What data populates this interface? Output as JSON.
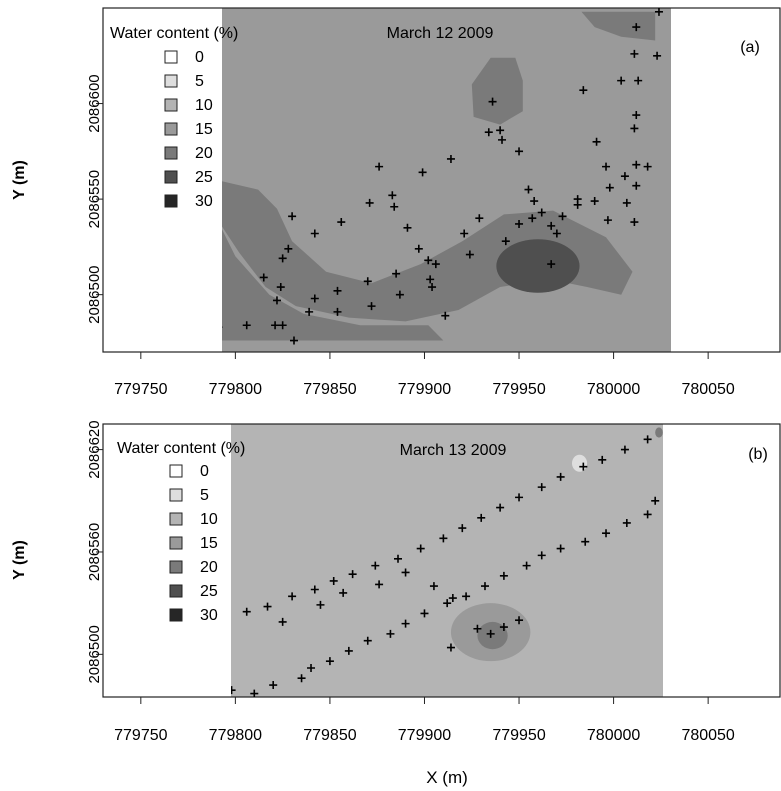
{
  "chart_data": [
    {
      "type": "heatmap",
      "panel_label": "(a)",
      "date_label": "March 12 2009",
      "legend_title": "Water content (%)",
      "ylabel": "Y (m)",
      "x_ticks": [
        "779750",
        "779800",
        "779850",
        "779900",
        "779950",
        "780000",
        "780050"
      ],
      "y_ticks": [
        "2086500",
        "2086550",
        "2086600"
      ],
      "xlim": [
        779730,
        780088
      ],
      "ylim": [
        2086470,
        2086650
      ],
      "legend": [
        {
          "label": "0",
          "color": "#ffffff"
        },
        {
          "label": "5",
          "color": "#dedede"
        },
        {
          "label": "10",
          "color": "#b4b4b4"
        },
        {
          "label": "15",
          "color": "#9a9a9a"
        },
        {
          "label": "20",
          "color": "#7a7a7a"
        },
        {
          "label": "25",
          "color": "#4f4f4f"
        },
        {
          "label": "30",
          "color": "#262626"
        }
      ],
      "field": {
        "base_class": "15",
        "regions": [
          {
            "class": "20",
            "shape": "polygon",
            "points": [
              [
                779790,
                2086540
              ],
              [
                779802,
                2086522
              ],
              [
                779816,
                2086504
              ],
              [
                779832,
                2086494
              ],
              [
                779860,
                2086488
              ],
              [
                779890,
                2086486
              ],
              [
                779918,
                2086492
              ],
              [
                779940,
                2086504
              ],
              [
                779966,
                2086508
              ],
              [
                779986,
                2086504
              ],
              [
                780004,
                2086500
              ],
              [
                780010,
                2086512
              ],
              [
                779996,
                2086530
              ],
              [
                779968,
                2086544
              ],
              [
                779942,
                2086542
              ],
              [
                779920,
                2086528
              ],
              [
                779898,
                2086516
              ],
              [
                779872,
                2086506
              ],
              [
                779848,
                2086512
              ],
              [
                779830,
                2086528
              ],
              [
                779822,
                2086545
              ],
              [
                779812,
                2086555
              ],
              [
                779790,
                2086560
              ]
            ]
          },
          {
            "class": "20",
            "shape": "polygon",
            "points": [
              [
                779790,
                2086476
              ],
              [
                779790,
                2086540
              ],
              [
                779800,
                2086520
              ],
              [
                779818,
                2086500
              ],
              [
                779836,
                2086490
              ],
              [
                779866,
                2086484
              ],
              [
                779902,
                2086484
              ],
              [
                779910,
                2086476
              ]
            ]
          },
          {
            "class": "20",
            "shape": "polygon",
            "points": [
              [
                779935,
                2086624
              ],
              [
                779948,
                2086624
              ],
              [
                779952,
                2086612
              ],
              [
                779952,
                2086596
              ],
              [
                779940,
                2086589
              ],
              [
                779926,
                2086593
              ],
              [
                779925,
                2086610
              ]
            ]
          },
          {
            "class": "20",
            "shape": "polygon",
            "points": [
              [
                779983,
                2086648
              ],
              [
                780022,
                2086648
              ],
              [
                780022,
                2086633
              ],
              [
                780004,
                2086635
              ],
              [
                779990,
                2086640
              ]
            ]
          },
          {
            "class": "25",
            "shape": "ellipse",
            "cx": 779960,
            "cy": 2086515,
            "rx": 22,
            "ry": 14
          }
        ]
      },
      "sample_points": [
        [
          779791,
          2086483
        ],
        [
          779806,
          2086484
        ],
        [
          779821,
          2086484
        ],
        [
          779825,
          2086484
        ],
        [
          779831,
          2086476
        ],
        [
          779815,
          2086509
        ],
        [
          779824,
          2086504
        ],
        [
          779822,
          2086497
        ],
        [
          779825,
          2086519
        ],
        [
          779828,
          2086524
        ],
        [
          779830,
          2086541
        ],
        [
          779842,
          2086532
        ],
        [
          779839,
          2086491
        ],
        [
          779842,
          2086498
        ],
        [
          779854,
          2086502
        ],
        [
          779854,
          2086491
        ],
        [
          779856,
          2086538
        ],
        [
          779870,
          2086507
        ],
        [
          779872,
          2086494
        ],
        [
          779871,
          2086548
        ],
        [
          779876,
          2086567
        ],
        [
          779883,
          2086552
        ],
        [
          779884,
          2086546
        ],
        [
          779891,
          2086535
        ],
        [
          779885,
          2086511
        ],
        [
          779887,
          2086500
        ],
        [
          779897,
          2086524
        ],
        [
          779902,
          2086518
        ],
        [
          779903,
          2086508
        ],
        [
          779904,
          2086504
        ],
        [
          779906,
          2086516
        ],
        [
          779899,
          2086564
        ],
        [
          779911,
          2086489
        ],
        [
          779914,
          2086571
        ],
        [
          779921,
          2086532
        ],
        [
          779924,
          2086521
        ],
        [
          779929,
          2086540
        ],
        [
          779934,
          2086585
        ],
        [
          779936,
          2086601
        ],
        [
          779940,
          2086586
        ],
        [
          779941,
          2086581
        ],
        [
          779943,
          2086528
        ],
        [
          779950,
          2086537
        ],
        [
          779950,
          2086575
        ],
        [
          779955,
          2086555
        ],
        [
          779957,
          2086540
        ],
        [
          779958,
          2086549
        ],
        [
          779962,
          2086543
        ],
        [
          779967,
          2086536
        ],
        [
          779967,
          2086516
        ],
        [
          779970,
          2086532
        ],
        [
          779973,
          2086541
        ],
        [
          779981,
          2086547
        ],
        [
          779981,
          2086550
        ],
        [
          779990,
          2086549
        ],
        [
          779991,
          2086580
        ],
        [
          779996,
          2086567
        ],
        [
          779998,
          2086556
        ],
        [
          779997,
          2086539
        ],
        [
          779984,
          2086607
        ],
        [
          780004,
          2086612
        ],
        [
          780007,
          2086548
        ],
        [
          780006,
          2086562
        ],
        [
          780012,
          2086557
        ],
        [
          780011,
          2086538
        ],
        [
          780012,
          2086568
        ],
        [
          780011,
          2086587
        ],
        [
          780012,
          2086594
        ],
        [
          780013,
          2086612
        ],
        [
          780011,
          2086626
        ],
        [
          780012,
          2086640
        ],
        [
          780018,
          2086567
        ],
        [
          780023,
          2086625
        ],
        [
          780024,
          2086648
        ]
      ]
    },
    {
      "type": "heatmap",
      "panel_label": "(b)",
      "date_label": "March 13 2009",
      "legend_title": "Water content (%)",
      "ylabel": "Y (m)",
      "xlabel": "X (m)",
      "x_ticks": [
        "779750",
        "779800",
        "779850",
        "779900",
        "779950",
        "780000",
        "780050"
      ],
      "y_ticks": [
        "2086500",
        "2086560",
        "2086620"
      ],
      "xlim": [
        779730,
        780088
      ],
      "ylim": [
        2086475,
        2086635
      ],
      "legend": [
        {
          "label": "0",
          "color": "#ffffff"
        },
        {
          "label": "5",
          "color": "#dedede"
        },
        {
          "label": "10",
          "color": "#b4b4b4"
        },
        {
          "label": "15",
          "color": "#9a9a9a"
        },
        {
          "label": "20",
          "color": "#7a7a7a"
        },
        {
          "label": "25",
          "color": "#4f4f4f"
        },
        {
          "label": "30",
          "color": "#262626"
        }
      ],
      "field": {
        "base_class": "10",
        "regions": [
          {
            "class": "15",
            "shape": "ellipse",
            "cx": 779935,
            "cy": 2086513,
            "rx": 21,
            "ry": 17
          },
          {
            "class": "20",
            "shape": "ellipse",
            "cx": 779936,
            "cy": 2086511,
            "rx": 8,
            "ry": 8
          },
          {
            "class": "5",
            "shape": "ellipse",
            "cx": 779982,
            "cy": 2086612,
            "rx": 4,
            "ry": 5
          },
          {
            "class": "20",
            "shape": "ellipse",
            "cx": 780024,
            "cy": 2086630,
            "rx": 2,
            "ry": 3
          }
        ]
      },
      "sample_points": [
        [
          779798,
          2086479
        ],
        [
          779810,
          2086477
        ],
        [
          779820,
          2086482
        ],
        [
          779835,
          2086486
        ],
        [
          779840,
          2086492
        ],
        [
          779850,
          2086496
        ],
        [
          779860,
          2086502
        ],
        [
          779870,
          2086508
        ],
        [
          779882,
          2086512
        ],
        [
          779890,
          2086518
        ],
        [
          779900,
          2086524
        ],
        [
          779912,
          2086530
        ],
        [
          779922,
          2086534
        ],
        [
          779932,
          2086540
        ],
        [
          779942,
          2086546
        ],
        [
          779954,
          2086552
        ],
        [
          779962,
          2086558
        ],
        [
          779972,
          2086562
        ],
        [
          779985,
          2086566
        ],
        [
          779996,
          2086571
        ],
        [
          780007,
          2086577
        ],
        [
          780018,
          2086582
        ],
        [
          780022,
          2086590
        ],
        [
          779806,
          2086525
        ],
        [
          779817,
          2086528
        ],
        [
          779830,
          2086534
        ],
        [
          779842,
          2086538
        ],
        [
          779852,
          2086543
        ],
        [
          779862,
          2086547
        ],
        [
          779874,
          2086552
        ],
        [
          779886,
          2086556
        ],
        [
          779898,
          2086562
        ],
        [
          779910,
          2086568
        ],
        [
          779920,
          2086574
        ],
        [
          779930,
          2086580
        ],
        [
          779940,
          2086586
        ],
        [
          779950,
          2086592
        ],
        [
          779962,
          2086598
        ],
        [
          779972,
          2086604
        ],
        [
          779984,
          2086610
        ],
        [
          779994,
          2086614
        ],
        [
          780006,
          2086620
        ],
        [
          780018,
          2086626
        ],
        [
          779825,
          2086519
        ],
        [
          779845,
          2086529
        ],
        [
          779857,
          2086536
        ],
        [
          779876,
          2086541
        ],
        [
          779890,
          2086548
        ],
        [
          779905,
          2086540
        ],
        [
          779915,
          2086533
        ],
        [
          779928,
          2086515
        ],
        [
          779942,
          2086516
        ],
        [
          779950,
          2086520
        ],
        [
          779914,
          2086504
        ],
        [
          779935,
          2086512
        ]
      ]
    }
  ],
  "shared": {
    "xlabel": "X (m)"
  }
}
